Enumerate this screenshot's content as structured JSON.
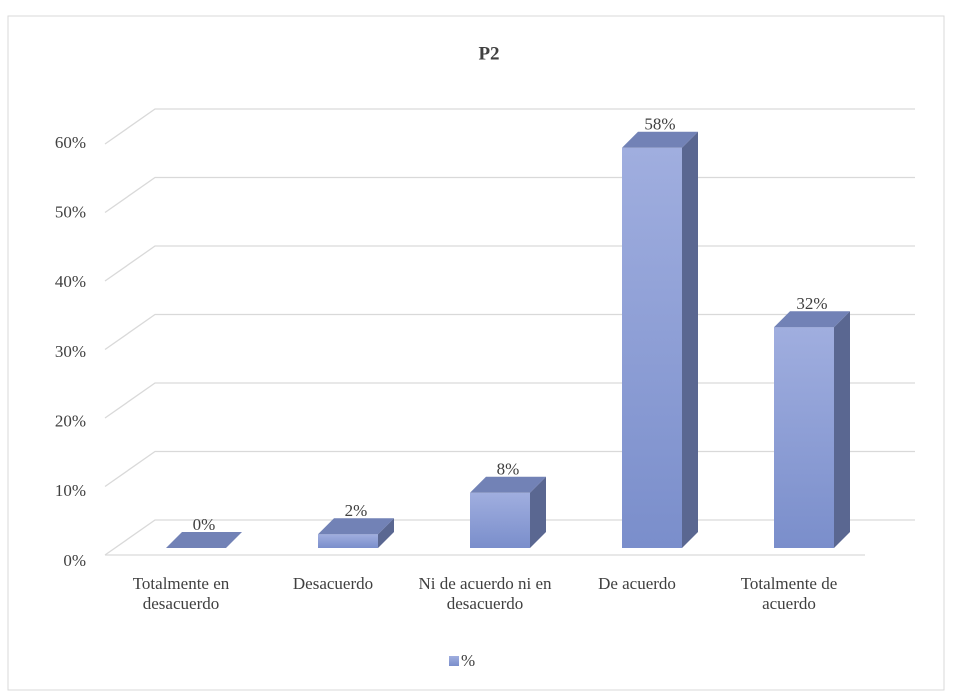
{
  "chart_data": {
    "type": "bar3d",
    "title": "P2",
    "categories": [
      "Totalmente en desacuerdo",
      "Desacuerdo",
      "Ni de acuerdo ni en desacuerdo",
      "De acuerdo",
      "Totalmente de acuerdo"
    ],
    "series": [
      {
        "name": "%",
        "color": "#8e9fd6",
        "values": [
          0,
          2,
          8,
          58,
          32
        ],
        "value_labels": [
          "0%",
          "2%",
          "8%",
          "58%",
          "32%"
        ]
      }
    ],
    "ylim": [
      0,
      60
    ],
    "yticks": [
      {
        "value": 0,
        "label": "0%"
      },
      {
        "value": 10,
        "label": "10%"
      },
      {
        "value": 20,
        "label": "20%"
      },
      {
        "value": 30,
        "label": "30%"
      },
      {
        "value": 40,
        "label": "40%"
      },
      {
        "value": 50,
        "label": "50%"
      },
      {
        "value": 60,
        "label": "60%"
      }
    ],
    "grid": true,
    "legend": "bottom"
  }
}
